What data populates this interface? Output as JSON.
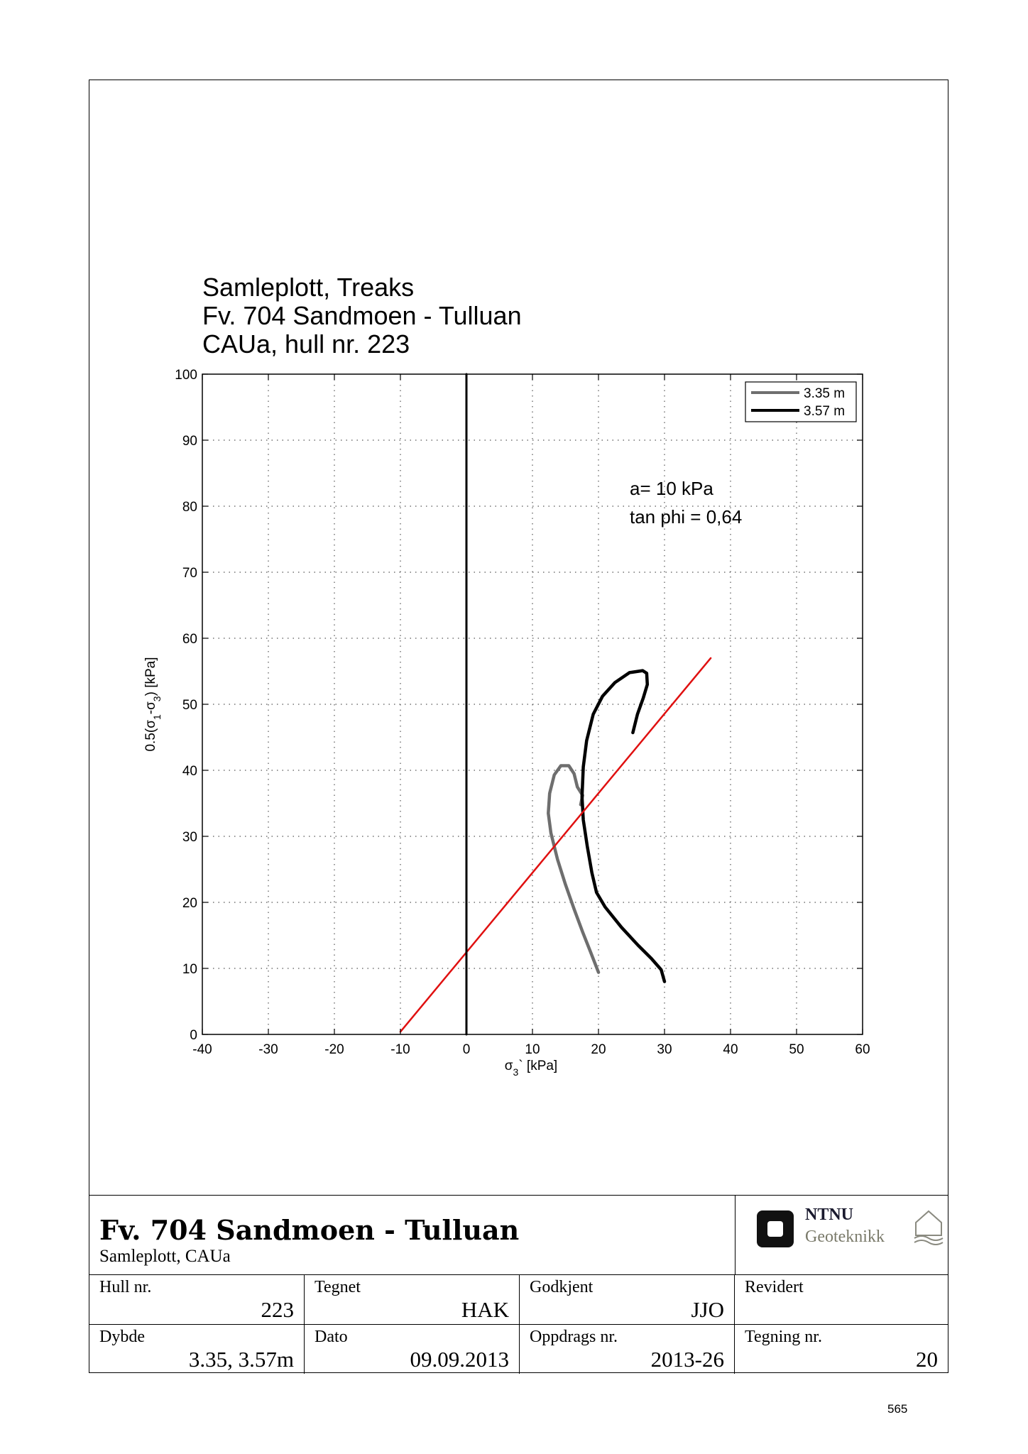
{
  "chart_data": {
    "type": "line",
    "title_lines": [
      "Samleplott, Treaks",
      "Fv. 704 Sandmoen - Tulluan",
      "CAUa, hull nr. 223"
    ],
    "xlabel": "σ3` [kPa]",
    "ylabel": "0.5(σ1-σ3) [kPa]",
    "xlim": [
      -40,
      60
    ],
    "ylim": [
      0,
      100
    ],
    "xticks": [
      -40,
      -30,
      -20,
      -10,
      0,
      10,
      20,
      30,
      40,
      50,
      60
    ],
    "yticks": [
      0,
      10,
      20,
      30,
      40,
      50,
      60,
      70,
      80,
      90,
      100
    ],
    "grid": true,
    "legend_position": "top-right",
    "annotations": [
      "a= 10 kPa",
      "tan phi = 0,64"
    ],
    "series": [
      {
        "name": "3.35 m",
        "color": "#6e6e6e",
        "points": [
          [
            20.0,
            9.4
          ],
          [
            18.8,
            12.5
          ],
          [
            17.6,
            15.5
          ],
          [
            16.3,
            19.0
          ],
          [
            15.0,
            22.7
          ],
          [
            13.8,
            26.5
          ],
          [
            12.8,
            30.5
          ],
          [
            12.4,
            33.5
          ],
          [
            12.6,
            36.5
          ],
          [
            13.3,
            39.3
          ],
          [
            14.3,
            40.7
          ],
          [
            15.5,
            40.7
          ],
          [
            16.3,
            39.5
          ],
          [
            16.8,
            37.5
          ],
          [
            17.6,
            36.2
          ],
          [
            17.3,
            34.8
          ]
        ]
      },
      {
        "name": "3.57 m",
        "color": "#000000",
        "points": [
          [
            30.0,
            8.0
          ],
          [
            29.5,
            9.8
          ],
          [
            28.0,
            11.5
          ],
          [
            26.0,
            13.5
          ],
          [
            23.5,
            16.2
          ],
          [
            21.0,
            19.3
          ],
          [
            19.7,
            21.5
          ],
          [
            19.0,
            24.5
          ],
          [
            18.3,
            28.5
          ],
          [
            17.7,
            32.5
          ],
          [
            17.5,
            36.0
          ],
          [
            17.7,
            40.5
          ],
          [
            18.2,
            44.5
          ],
          [
            19.2,
            48.5
          ],
          [
            20.6,
            51.2
          ],
          [
            22.5,
            53.3
          ],
          [
            24.7,
            54.8
          ],
          [
            26.7,
            55.1
          ],
          [
            27.3,
            54.7
          ],
          [
            27.4,
            53.0
          ],
          [
            26.8,
            51.0
          ],
          [
            25.9,
            48.5
          ],
          [
            25.2,
            45.7
          ]
        ]
      },
      {
        "name": "",
        "color": "#e01010",
        "points": [
          [
            -10.0,
            0.4
          ],
          [
            37.0,
            57.0
          ]
        ]
      },
      {
        "name": "",
        "color": "#000000",
        "points": [
          [
            0,
            0
          ],
          [
            0,
            100
          ]
        ]
      }
    ]
  },
  "title_block": {
    "project_title": "Fv. 704 Sandmoen - Tulluan",
    "project_subtitle": "Samleplott, CAUa",
    "logo_ntnu": "NTNU",
    "logo_geoteknikk": "Geoteknikk",
    "hull_label": "Hull nr.",
    "hull_value": "223",
    "tegnet_label": "Tegnet",
    "tegnet_value": "HAK",
    "godkjent_label": "Godkjent",
    "godkjent_value": "JJO",
    "revidert_label": "Revidert",
    "revidert_value": "",
    "dybde_label": "Dybde",
    "dybde_value": "3.35, 3.57m",
    "dato_label": "Dato",
    "dato_value": "09.09.2013",
    "oppdrag_label": "Oppdrags nr.",
    "oppdrag_value": "2013-26",
    "tegning_label": "Tegning nr.",
    "tegning_value": "20"
  },
  "page_number": "565"
}
